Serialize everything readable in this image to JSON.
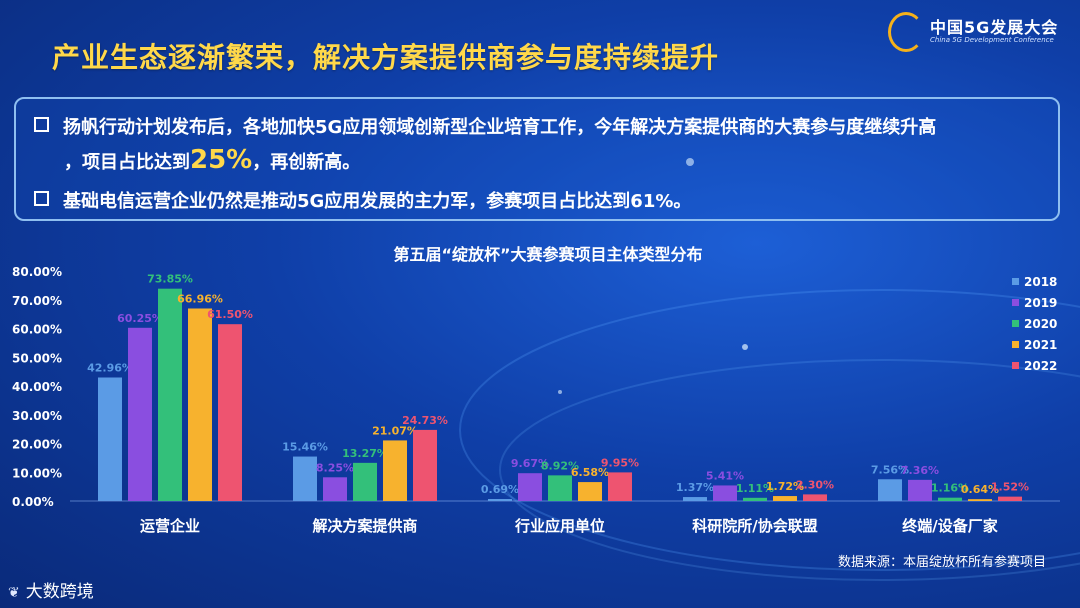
{
  "header": {
    "logo_main": "中国5G发展大会",
    "logo_sub": "China 5G Development Conference",
    "title": "产业生态逐渐繁荣，解决方案提供商参与度持续提升"
  },
  "bullets": {
    "b1_line1": "扬帆行动计划发布后，各地加快5G应用领域创新型企业培育工作，今年解决方案提供商的大赛参与度继续升高",
    "b1_pre": "，项目占比达到",
    "b1_highlight": "25%",
    "b1_post": "，再创新高。",
    "b2": "基础电信运营企业仍然是推动5G应用发展的主力军，参赛项目占比达到61%。"
  },
  "chart_data": {
    "type": "bar",
    "title": "第五届“绽放杯”大赛参赛项目主体类型分布",
    "categories": [
      "运营企业",
      "解决方案提供商",
      "行业应用单位",
      "科研院所/协会联盟",
      "终端/设备厂家"
    ],
    "series": [
      {
        "name": "2018",
        "color": "#5b9be5",
        "labels": [
          "42.96%",
          "15.46%",
          "0.69%",
          "1.37%",
          "7.56%"
        ],
        "values": [
          42.96,
          15.46,
          0.69,
          1.37,
          7.56
        ]
      },
      {
        "name": "2019",
        "color": "#8a4ee0",
        "labels": [
          "60.25%",
          "8.25%",
          "9.67%",
          "5.41%",
          "7.36%"
        ],
        "values": [
          60.25,
          8.25,
          9.67,
          5.41,
          7.36
        ]
      },
      {
        "name": "2020",
        "color": "#33c07a",
        "labels": [
          "73.85%",
          "13.27%",
          "8.92%",
          "1.11%",
          "1.16%"
        ],
        "values": [
          73.85,
          13.27,
          8.92,
          1.11,
          1.16
        ]
      },
      {
        "name": "2021",
        "color": "#f7b22e",
        "labels": [
          "66.96%",
          "21.07%",
          "6.58%",
          "1.72%",
          "0.64%"
        ],
        "values": [
          66.96,
          21.07,
          6.58,
          1.72,
          0.64
        ]
      },
      {
        "name": "2022",
        "color": "#ee5470",
        "labels": [
          "61.50%",
          "24.73%",
          "9.95%",
          "2.30%",
          "1.52%"
        ],
        "values": [
          61.5,
          24.73,
          9.95,
          2.3,
          1.52
        ]
      }
    ],
    "y_ticks": [
      "0.00%",
      "10.00%",
      "20.00%",
      "30.00%",
      "40.00%",
      "50.00%",
      "60.00%",
      "70.00%",
      "80.00%"
    ],
    "ylim": [
      0,
      80
    ],
    "legend_position": "right",
    "grid": false
  },
  "footer": {
    "source": "数据来源：本届绽放杯所有参赛项目",
    "brand": "大数跨境",
    "brand_icon": "ebrun-logo-icon"
  }
}
